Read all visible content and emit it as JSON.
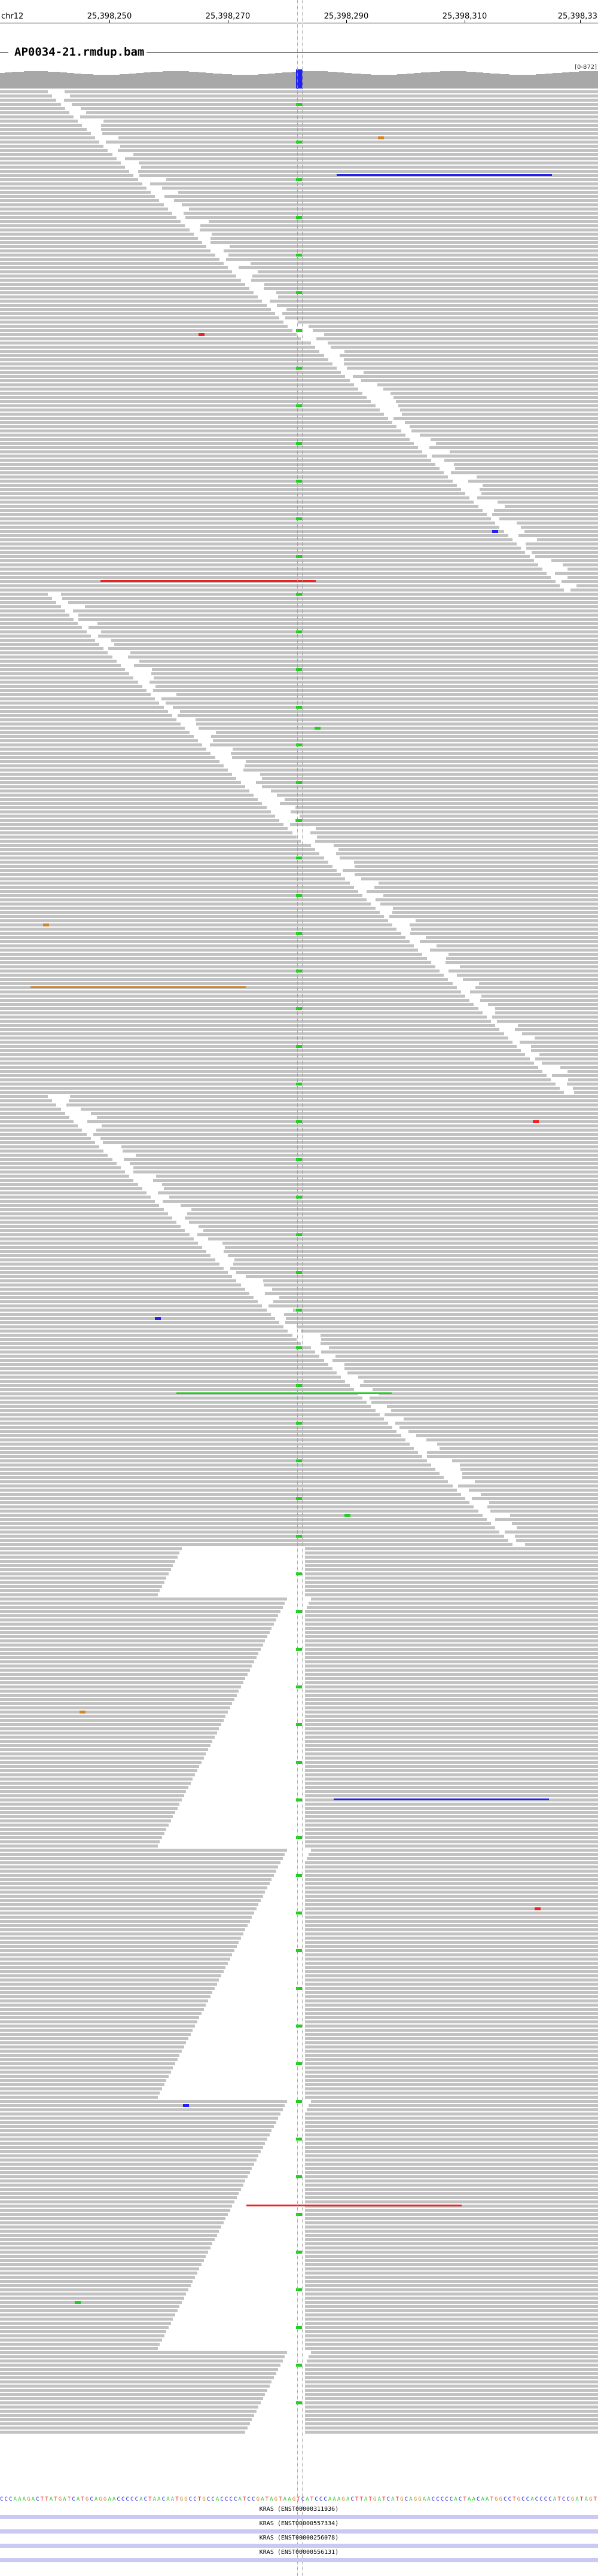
{
  "ruler": {
    "chromosome": "chr12",
    "ticks": [
      "25,398,250",
      "25,398,270",
      "25,398,290",
      "25,398,310",
      "25,398,330"
    ]
  },
  "track": {
    "title": "AP0034-21.rmdup.bam",
    "coverage_range": "[0-872]"
  },
  "colors": {
    "read": "#c2c2c2",
    "coverage": "#a8a8a8",
    "mismatch_A": "#22cc22",
    "mismatch_C": "#2222ee",
    "mismatch_G": "#d2842a",
    "mismatch_T": "#ee2222",
    "gene": "#c9c9f2"
  },
  "reference_sequence": "CCCAAAGACTTATGATCATGCAGGAACCCCCACTAACAATGGCCTGCCACCCCATCCGATAGTAAGTCATCCCAAAGACTTATGATCATGCAGGAACCCCCACTAACAATGGCCTGCCACCCCATCCGATAGT",
  "genes": [
    {
      "label": "KRAS (ENST00000311936)"
    },
    {
      "label": "KRAS (ENST00000557334)"
    },
    {
      "label": "KRAS (ENST00000256078)"
    },
    {
      "label": "KRAS (ENST00000556131)"
    }
  ]
}
